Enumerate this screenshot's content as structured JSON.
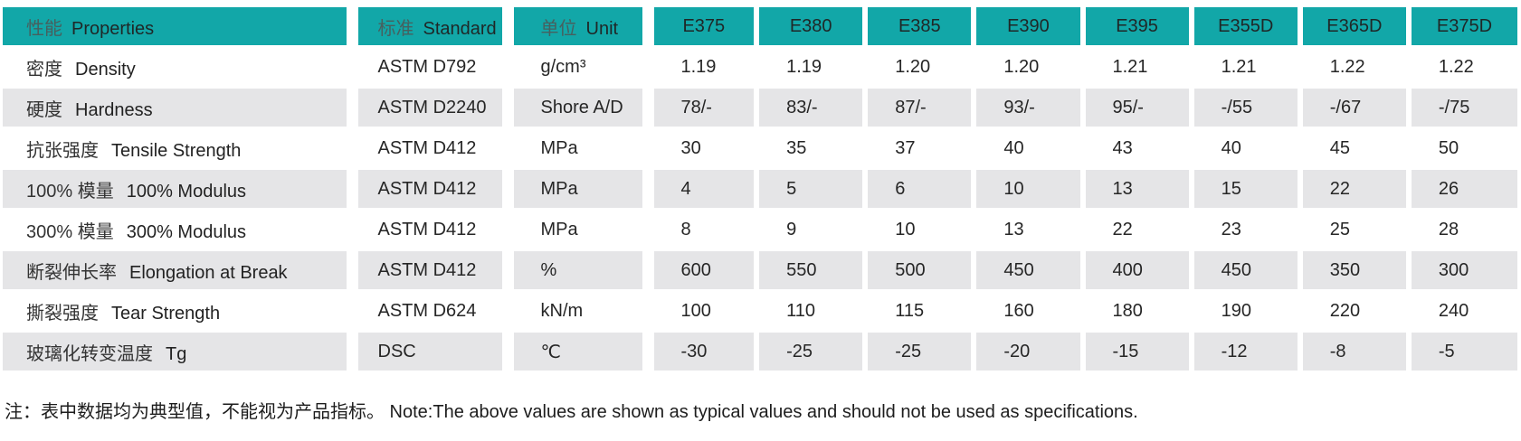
{
  "colors": {
    "header_bg": "#12a7a8",
    "stripe_bg": "#e5e5e7",
    "header_cn": "#46605f",
    "text": "#262626"
  },
  "table": {
    "headers": {
      "property": {
        "cn": "性能",
        "en": "Properties"
      },
      "standard": {
        "cn": "标准",
        "en": "Standard"
      },
      "unit": {
        "cn": "单位",
        "en": "Unit"
      },
      "grades": [
        "E375",
        "E380",
        "E385",
        "E390",
        "E395",
        "E355D",
        "E365D",
        "E375D"
      ]
    },
    "rows": [
      {
        "property_cn": "密度",
        "property_en": "Density",
        "standard": "ASTM D792",
        "unit": "g/cm³",
        "values": [
          "1.19",
          "1.19",
          "1.20",
          "1.20",
          "1.21",
          "1.21",
          "1.22",
          "1.22"
        ]
      },
      {
        "property_cn": "硬度",
        "property_en": "Hardness",
        "standard": "ASTM D2240",
        "unit": "Shore A/D",
        "values": [
          "78/-",
          "83/-",
          "87/-",
          "93/-",
          "95/-",
          "-/55",
          "-/67",
          "-/75"
        ]
      },
      {
        "property_cn": "抗张强度",
        "property_en": "Tensile Strength",
        "standard": "ASTM D412",
        "unit": "MPa",
        "values": [
          "30",
          "35",
          "37",
          "40",
          "43",
          "40",
          "45",
          "50"
        ]
      },
      {
        "property_cn": "100% 模量",
        "property_en": "100% Modulus",
        "standard": "ASTM D412",
        "unit": "MPa",
        "values": [
          "4",
          "5",
          "6",
          "10",
          "13",
          "15",
          "22",
          "26"
        ]
      },
      {
        "property_cn": "300% 模量",
        "property_en": "300% Modulus",
        "standard": "ASTM D412",
        "unit": "MPa",
        "values": [
          "8",
          "9",
          "10",
          "13",
          "22",
          "23",
          "25",
          "28"
        ]
      },
      {
        "property_cn": "断裂伸长率",
        "property_en": "Elongation at Break",
        "standard": "ASTM D412",
        "unit": "%",
        "values": [
          "600",
          "550",
          "500",
          "450",
          "400",
          "450",
          "350",
          "300"
        ]
      },
      {
        "property_cn": "撕裂强度",
        "property_en": "Tear Strength",
        "standard": "ASTM D624",
        "unit": "kN/m",
        "values": [
          "100",
          "110",
          "115",
          "160",
          "180",
          "190",
          "220",
          "240"
        ]
      },
      {
        "property_cn": "玻璃化转变温度",
        "property_en": "Tg",
        "standard": "DSC",
        "unit": "℃",
        "values": [
          "-30",
          "-25",
          "-25",
          "-20",
          "-15",
          "-12",
          "-8",
          "-5"
        ]
      }
    ]
  },
  "note": "注：表中数据均为典型值，不能视为产品指标。 Note:The above values are shown as typical values and should not be used as specifications."
}
